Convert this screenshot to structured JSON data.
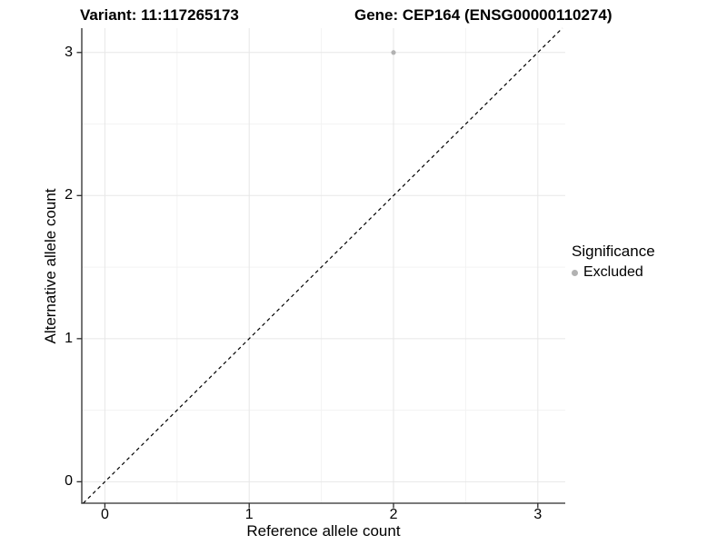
{
  "title": {
    "variant": "Variant: 11:117265173",
    "gene": "Gene: CEP164 (ENSG00000110274)"
  },
  "axes": {
    "x": {
      "label": "Reference allele count",
      "tick_labels": [
        "0",
        "1",
        "2",
        "3"
      ]
    },
    "y": {
      "label": "Alternative allele count",
      "tick_labels": [
        "0",
        "1",
        "2",
        "3"
      ]
    }
  },
  "legend": {
    "title": "Significance",
    "entries": [
      {
        "label": "Excluded",
        "marker": "circle-icon",
        "color": "#b2b2b2"
      }
    ]
  },
  "chart_data": {
    "type": "scatter",
    "title": "Variant: 11:117265173 | Gene: CEP164 (ENSG00000110274)",
    "xlabel": "Reference allele count",
    "ylabel": "Alternative allele count",
    "xlim": [
      -0.16,
      3.19
    ],
    "ylim": [
      -0.15,
      3.17
    ],
    "x_ticks": [
      0,
      1,
      2,
      3
    ],
    "y_ticks": [
      0,
      1,
      2,
      3
    ],
    "x_minor_ticks": [
      0.5,
      1.5,
      2.5
    ],
    "y_minor_ticks": [
      0.5,
      1.5,
      2.5
    ],
    "grid": true,
    "legend_position": "right",
    "series": [
      {
        "name": "Excluded",
        "color": "#b2b2b2",
        "points": [
          {
            "x": 2,
            "y": 3
          }
        ]
      }
    ],
    "reference_line": {
      "kind": "identity",
      "slope": 1,
      "intercept": 0,
      "style": "dashed",
      "color": "#000000"
    }
  },
  "colors": {
    "background": "#ffffff",
    "grid_major": "#e7e7e7",
    "grid_minor": "#f3f3f3",
    "axis_line": "#2b2b2b",
    "text": "#000000",
    "excluded_point": "#b2b2b2"
  }
}
